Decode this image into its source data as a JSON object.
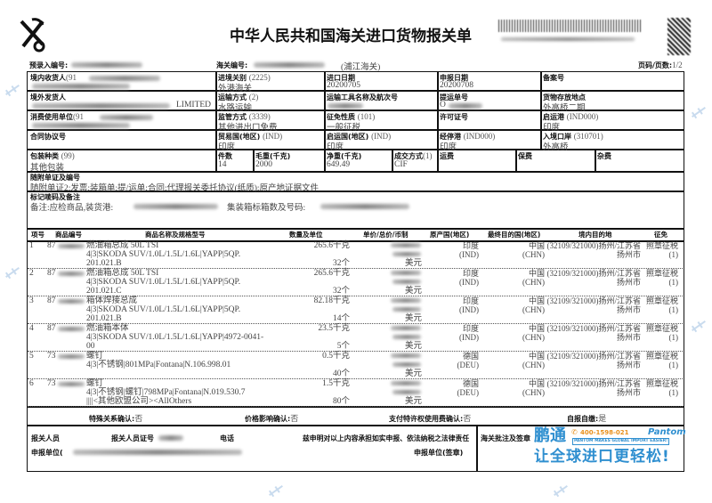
{
  "title": "中华人民共和国海关进口货物报关单",
  "top": {
    "pre_entry_label": "预录入编号:",
    "customs_no_label": "海关编号:",
    "customs_office": "(浦江海关)",
    "page_label": "页码/页数:",
    "page": "1/2"
  },
  "fields": {
    "consignee": {
      "label": "境内收货人",
      "code": "(91"
    },
    "entry_customs": {
      "label": "进境关别",
      "code": "(2225)",
      "value": "外港海关"
    },
    "import_date": {
      "label": "进口日期",
      "value": "20200705"
    },
    "declare_date": {
      "label": "申报日期",
      "value": "20200708"
    },
    "record_no": {
      "label": "备案号"
    },
    "shipper": {
      "label": "境外发货人",
      "value": "LIMITED"
    },
    "transport_mode": {
      "label": "运输方式",
      "code": "(2)",
      "value": "水路运输"
    },
    "vessel": {
      "label": "运输工具名称及航次号"
    },
    "bl_no": {
      "label": "提运单号",
      "value": "O"
    },
    "storage": {
      "label": "货物存放地点",
      "value": "外高桥二期"
    },
    "consumer": {
      "label": "消费使用单位",
      "code": "(91"
    },
    "supervision": {
      "label": "监管方式",
      "code": "(3339)",
      "value": "其他进出口免费"
    },
    "levy": {
      "label": "征免性质",
      "code": "(101)",
      "value": "一般征税"
    },
    "license": {
      "label": "许可证号"
    },
    "departure_port": {
      "label": "启运港",
      "code": "(IND000)",
      "value": "印度"
    },
    "contract": {
      "label": "合同协议号"
    },
    "trade_country": {
      "label": "贸易国(地区)",
      "code": "(IND)",
      "value": "印度"
    },
    "origin_country": {
      "label": "启运国(地区)",
      "code": "(IND)",
      "value": "印度"
    },
    "stop_port": {
      "label": "经停港",
      "code": "(IND000)",
      "value": "印度"
    },
    "entry_port": {
      "label": "入境口岸",
      "code": "(310701)",
      "value": "外高桥"
    },
    "packing": {
      "label": "包装种类",
      "code": "(99)",
      "value": "其他包装"
    },
    "pieces": {
      "label": "件数",
      "value": "14"
    },
    "gross": {
      "label": "毛重(千克)",
      "value": "2000"
    },
    "net": {
      "label": "净重(千克)",
      "value": "649.49"
    },
    "deal": {
      "label": "成交方式",
      "code": "(1)",
      "value": "CIF"
    },
    "freight": {
      "label": "运费"
    },
    "insurance": {
      "label": "保费"
    },
    "misc": {
      "label": "杂费"
    },
    "docs": {
      "label": "随附单证及编号",
      "value": "随附单证2:发票;装箱单;提/运单;合同;代理报关委托协议(纸质);原产地证据文件"
    },
    "marks": {
      "label": "标记唛码及备注",
      "value": "备注:应检商品,装货港:",
      "container_label": "集装箱标箱数及号码:"
    }
  },
  "items_header": [
    "项号",
    "商品编号",
    "商品名称及规格型号",
    "数量及单位",
    "单价/总价/币制",
    "原产国(地区)",
    "最终目的国(地区)",
    "境内目的地",
    "征免"
  ],
  "items": [
    {
      "no": "1",
      "code": "87",
      "name": "燃油箱总成 50L TSI",
      "spec1": "4|3|SKODA SUV/1.0L/1.5L/1.6L|YAPP|5QP.",
      "spec2": "201.021.B",
      "qty1": "265.6千克",
      "qty2": "32个",
      "currency": "美元",
      "origin": "印度",
      "origin_code": "(IND)",
      "dest": "中国",
      "dest_code": "(CHN)",
      "domestic": "(32109/321000)扬州/江苏省",
      "domestic2": "扬州市",
      "levy": "照章征税",
      "levy_code": "(1)"
    },
    {
      "no": "2",
      "code": "87",
      "name": "燃油箱总成 50L TSI",
      "spec1": "4|3|SKODA SUV/1.0L/1.5L/1.6L|YAPP|5QP.",
      "spec2": "201.021.C",
      "qty1": "265.6千克",
      "qty2": "32个",
      "currency": "美元",
      "origin": "印度",
      "origin_code": "(IND)",
      "dest": "中国",
      "dest_code": "(CHN)",
      "domestic": "(32109/321000)扬州/江苏省",
      "domestic2": "扬州市",
      "levy": "照章征税",
      "levy_code": "(1)"
    },
    {
      "no": "3",
      "code": "87",
      "name": "箱体焊接总成",
      "spec1": "4|3|SKODA SUV/1.0L/1.5L/1.6L|YAPP|5QP.",
      "spec2": "201.021.B",
      "qty1": "82.18千克",
      "qty2": "14个",
      "currency": "美元",
      "origin": "印度",
      "origin_code": "(IND)",
      "dest": "中国",
      "dest_code": "(CHN)",
      "domestic": "(32109/321000)扬州/江苏省",
      "domestic2": "扬州市",
      "levy": "照章征税",
      "levy_code": "(1)"
    },
    {
      "no": "4",
      "code": "87",
      "name": "燃油箱本体",
      "spec1": "4|3|SKODA SUV/1.0L/1.5L/1.6L|YAPP|4972-0041-",
      "spec2": "00",
      "qty1": "23.5千克",
      "qty2": "5个",
      "currency": "美元",
      "origin": "印度",
      "origin_code": "(IND)",
      "dest": "中国",
      "dest_code": "(CHN)",
      "domestic": "(32109/321000)扬州/江苏省",
      "domestic2": "扬州市",
      "levy": "照章征税",
      "levy_code": "(1)"
    },
    {
      "no": "5",
      "code": "73",
      "name": "螺钉",
      "spec1": "4|3|不锈钢|801MPa|Fontana|N.106.998.01",
      "spec2": "",
      "qty1": "0.5千克",
      "qty2": "40个",
      "currency": "美元",
      "origin": "德国",
      "origin_code": "(DEU)",
      "dest": "中国",
      "dest_code": "(CHN)",
      "domestic": "(32109/321000)扬州/江苏省",
      "domestic2": "扬州市",
      "levy": "照章征税",
      "levy_code": "(1)"
    },
    {
      "no": "6",
      "code": "73",
      "name": "螺钉",
      "spec1": "4|3|不锈钢|螺钉|798MPa|Fontana|N.019.530.7",
      "spec2": "||||<其他欧盟公司><AllOthers",
      "qty1": "1.5千克",
      "qty2": "80个",
      "currency": "美元",
      "origin": "德国",
      "origin_code": "(DEU)",
      "dest": "中国",
      "dest_code": "(CHN)",
      "domestic": "(32109/321000)扬州/江苏省",
      "domestic2": "扬州市",
      "levy": "照章征税",
      "levy_code": "(1)"
    }
  ],
  "confirm": {
    "special": "特殊关系确认:",
    "special_v": "否",
    "price": "价格影响确认:",
    "price_v": "否",
    "royalty": "支付特许权使用费确认:",
    "royalty_v": "否",
    "self": "自报自缴:",
    "self_v": "是"
  },
  "footer": {
    "broker": "报关人员",
    "broker_cert": "报关人员证号",
    "phone": "电话",
    "statement": "兹申明对以上内容承担如实申报、依法纳税之法律责任",
    "unit": "申报单位(",
    "unit_seal": "申报单位(签章)",
    "customs_note": "海关批注及签章"
  },
  "logo": {
    "brand": "鹏通",
    "hotline": "400-1598-021",
    "en": "Pantom",
    "tagline_en": "PANTOM MAKES GLOBAL IMPORT EASIER!",
    "slogan": "让全球进口更轻松!",
    "color": "#2f8fd0"
  }
}
